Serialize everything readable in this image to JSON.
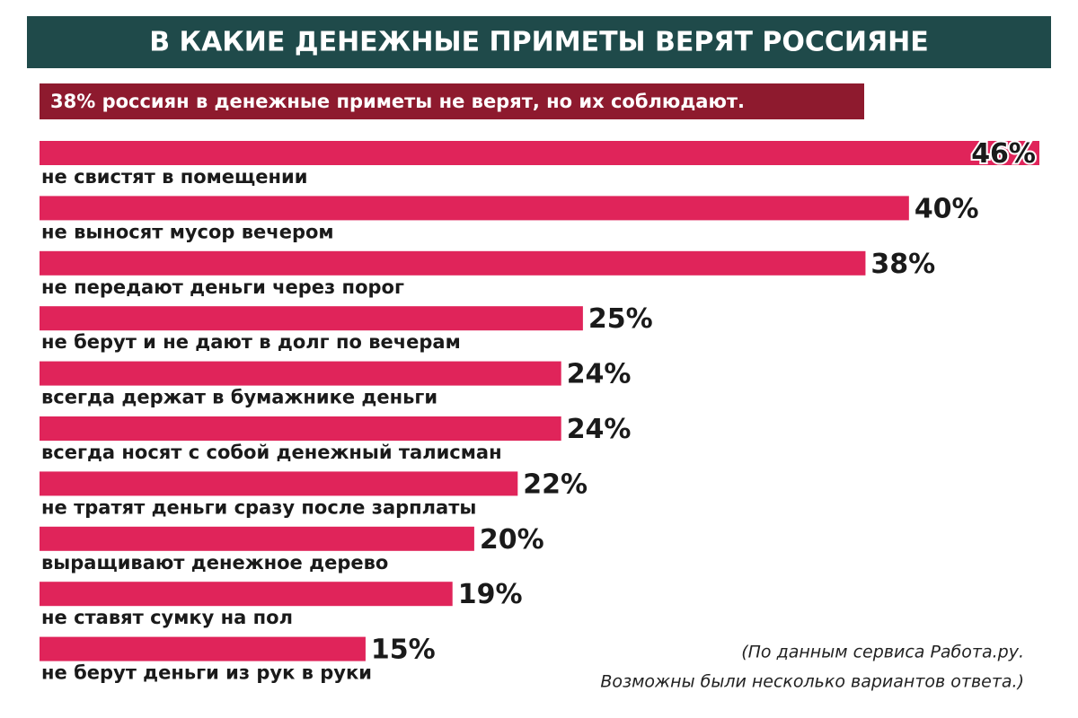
{
  "chart_data": {
    "type": "bar",
    "orientation": "horizontal",
    "title": "В КАКИЕ ДЕНЕЖНЫЕ ПРИМЕТЫ ВЕРЯТ РОССИЯНЕ",
    "subtitle": "38% россиян в денежные приметы не верят, но их соблюдают.",
    "categories": [
      "не свистят в помещении",
      "не выносят мусор вечером",
      "не передают деньги через порог",
      "не берут и не дают в долг по вечерам",
      "всегда держат в бумажнике деньги",
      "всегда носят с собой денежный талисман",
      "не тратят деньги сразу после зарплаты",
      "выращивают денежное дерево",
      "не ставят сумку на пол",
      "не берут деньги из рук в руки"
    ],
    "values": [
      46,
      40,
      38,
      25,
      24,
      24,
      22,
      20,
      19,
      15
    ],
    "value_labels": [
      "46%",
      "40%",
      "38%",
      "25%",
      "24%",
      "24%",
      "22%",
      "20%",
      "19%",
      "15%"
    ],
    "color": "#e0245a",
    "notes": [
      "(По данным сервиса Работа.ру.",
      "Возможны были несколько вариантов ответа.)"
    ]
  }
}
